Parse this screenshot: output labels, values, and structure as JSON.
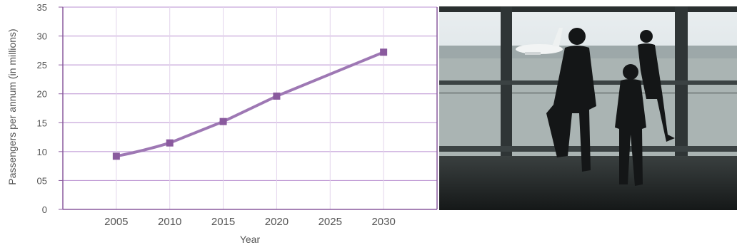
{
  "chart_data": {
    "type": "line",
    "title": "",
    "xlabel": "Year",
    "ylabel": "Passengers per annum (in millions)",
    "x": [
      2005,
      2010,
      2015,
      2020,
      2030
    ],
    "y": [
      9.2,
      11.5,
      15.2,
      19.6,
      27.2
    ],
    "x_ticks": [
      "2005",
      "2010",
      "2015",
      "2020",
      "2025",
      "2030"
    ],
    "x_tick_values": [
      2005,
      2010,
      2015,
      2020,
      2025,
      2030
    ],
    "y_ticks": [
      "0",
      "05",
      "10",
      "15",
      "20",
      "25",
      "30",
      "35"
    ],
    "y_tick_values": [
      0,
      5,
      10,
      15,
      20,
      25,
      30,
      35
    ],
    "xlim": [
      2000,
      2035
    ],
    "ylim": [
      0,
      35
    ],
    "grid": true,
    "legend": "none",
    "colors": {
      "line": "#9e78b4",
      "marker": "#8a5a9e",
      "grid": "#b98fd0",
      "axis": "#8a5a9e"
    }
  },
  "photo": {
    "subject": "people-at-airport-window"
  }
}
